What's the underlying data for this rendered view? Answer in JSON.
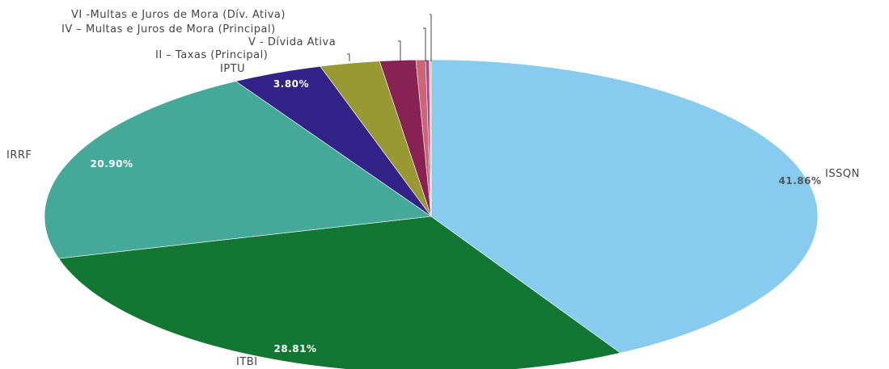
{
  "chart_data": {
    "type": "pie",
    "title": "",
    "slices": [
      {
        "label": "ISSQN",
        "value": 41.86,
        "value_label": "41.86%",
        "color": "#87CCEE",
        "label_color": "#555555"
      },
      {
        "label": "ITBI",
        "value": 28.81,
        "value_label": "28.81%",
        "color": "#137734",
        "label_color": "#ffffff"
      },
      {
        "label": "IRRF",
        "value": 20.9,
        "value_label": "20.90%",
        "color": "#45A999",
        "label_color": "#ffffff"
      },
      {
        "label": "IPTU",
        "value": 3.8,
        "value_label": "3.80%",
        "color": "#332288",
        "label_color": "#ffffff"
      },
      {
        "label": "II – Taxas (Principal)",
        "value": 2.5,
        "value_label": null,
        "color": "#999933",
        "label_color": "#ffffff"
      },
      {
        "label": "",
        "value": 1.5,
        "value_label": null,
        "color": "#882255",
        "label_color": "#ffffff"
      },
      {
        "label": "V - Dívida Ativa",
        "value": 0.4,
        "value_label": null,
        "color": "#CC6677",
        "label_color": "#ffffff"
      },
      {
        "label": "IV – Multas e Juros de Mora (Principal)",
        "value": 0.15,
        "value_label": null,
        "color": "#AA4499",
        "label_color": "#ffffff"
      },
      {
        "label": "VI -Multas e Juros de Mora (Dív. Ativa)",
        "value": 0.08,
        "value_label": null,
        "color": "#DDCC77",
        "label_color": "#ffffff"
      }
    ]
  }
}
